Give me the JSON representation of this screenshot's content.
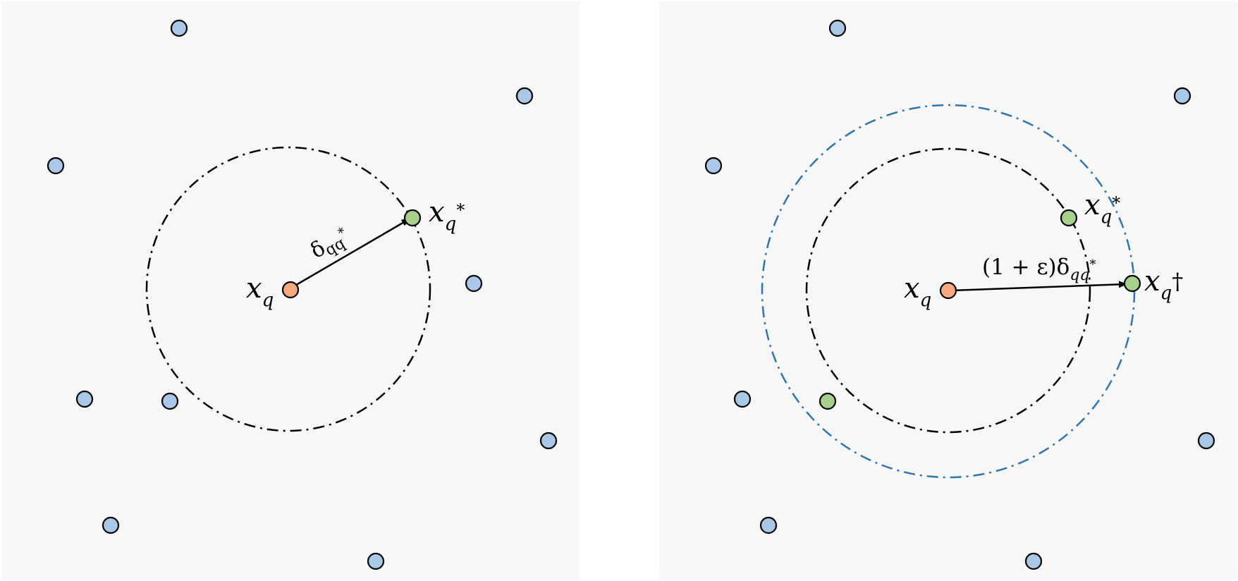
{
  "colors": {
    "panel_background": "#f7f7f7",
    "point_blue": "#a9c8e8",
    "point_orange": "#f4a97f",
    "point_green": "#a8d08d",
    "ring_black": "#000000",
    "ring_blue": "#2e75b6"
  },
  "left": {
    "query_label": "x",
    "query_sub": "q",
    "nn_label": "x",
    "nn_sub": "q",
    "nn_sup": "*",
    "edge_label": "δ",
    "edge_sub": "qq",
    "edge_sup": "*"
  },
  "right": {
    "query_label": "x",
    "query_sub": "q",
    "nn_label": "x",
    "nn_sub": "q",
    "nn_sup": "*",
    "approx_label": "x",
    "approx_sub": "q",
    "approx_sup": "†",
    "edge_label": "(1 + ε)δ",
    "edge_sub": "qq",
    "edge_sup": "*"
  }
}
